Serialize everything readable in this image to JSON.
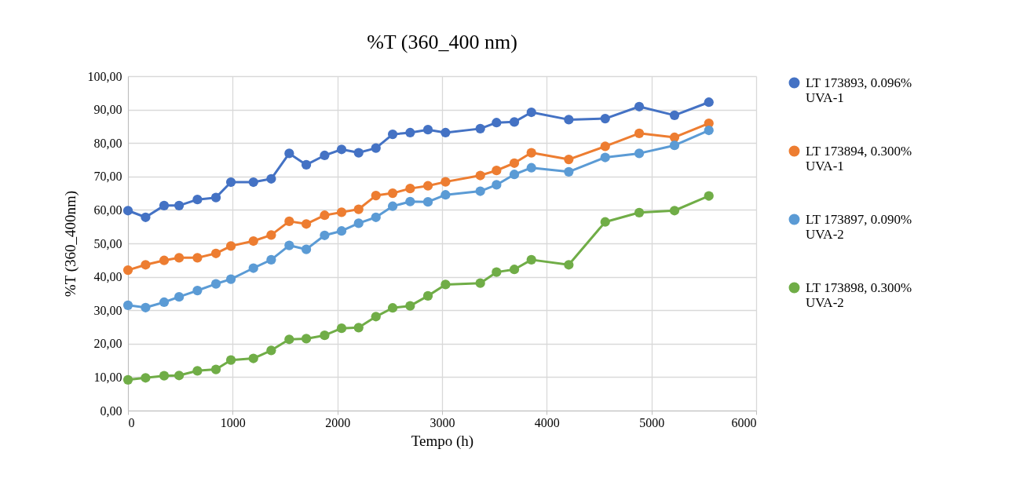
{
  "chart_data": {
    "type": "line",
    "title": "%T (360_400 nm)",
    "xlabel": "Tempo (h)",
    "ylabel": "%T (360_400nm)",
    "x": [
      0,
      168,
      345,
      488,
      663,
      840,
      983,
      1198,
      1368,
      1540,
      1703,
      1878,
      2040,
      2203,
      2368,
      2528,
      2695,
      2865,
      3033,
      3365,
      3520,
      3690,
      3853,
      4210,
      4558,
      4883,
      5220,
      5548
    ],
    "series": [
      {
        "name": "LT 173893, 0.096% UVA-1",
        "color": "#4472c4",
        "values": [
          59.8,
          57.8,
          61.3,
          61.3,
          63.1,
          63.7,
          68.3,
          68.3,
          69.3,
          76.9,
          73.5,
          76.3,
          78.1,
          77.1,
          78.5,
          82.6,
          83.1,
          84.0,
          83.1,
          84.3,
          86.1,
          86.3,
          89.2,
          87.0,
          87.3,
          90.9,
          88.3,
          92.2
        ]
      },
      {
        "name": "LT 173894, 0.300% UVA-1",
        "color": "#ed7d31",
        "values": [
          42.0,
          43.6,
          44.9,
          45.7,
          45.7,
          47.0,
          49.2,
          50.7,
          52.5,
          56.6,
          55.8,
          58.4,
          59.3,
          60.2,
          64.3,
          65.0,
          66.4,
          67.2,
          68.4,
          70.3,
          71.8,
          74.0,
          77.1,
          75.1,
          79.0,
          82.9,
          81.7,
          85.9
        ]
      },
      {
        "name": "LT 173897, 0.090% UVA-2",
        "color": "#5b9bd5",
        "values": [
          31.5,
          30.8,
          32.4,
          34.0,
          35.9,
          37.9,
          39.3,
          42.6,
          45.1,
          49.4,
          48.2,
          52.4,
          53.7,
          56.0,
          57.8,
          61.1,
          62.5,
          62.4,
          64.5,
          65.6,
          67.5,
          70.6,
          72.6,
          71.4,
          75.7,
          76.9,
          79.3,
          83.8
        ]
      },
      {
        "name": "LT 173898, 0.300% UVA-2",
        "color": "#70ad47",
        "values": [
          9.2,
          9.8,
          10.4,
          10.5,
          11.9,
          12.3,
          15.1,
          15.6,
          18.0,
          21.3,
          21.5,
          22.5,
          24.6,
          24.8,
          28.1,
          30.7,
          31.3,
          34.3,
          37.7,
          38.1,
          41.4,
          42.2,
          45.1,
          43.6,
          56.4,
          59.2,
          59.8,
          64.2
        ]
      }
    ],
    "xlim": [
      0,
      6000
    ],
    "xticks": [
      0,
      1000,
      2000,
      3000,
      4000,
      5000,
      6000
    ],
    "ylim": [
      0,
      100
    ],
    "yticks": [
      {
        "value": 0,
        "label": "0,00"
      },
      {
        "value": 10,
        "label": "10,00"
      },
      {
        "value": 20,
        "label": "20,00"
      },
      {
        "value": 30,
        "label": "30,00"
      },
      {
        "value": 40,
        "label": "40,00"
      },
      {
        "value": 50,
        "label": "50,00"
      },
      {
        "value": 60,
        "label": "60,00"
      },
      {
        "value": 70,
        "label": "70,00"
      },
      {
        "value": 80,
        "label": "80,00"
      },
      {
        "value": 90,
        "label": "90,00"
      },
      {
        "value": 100,
        "label": "100,00"
      }
    ],
    "grid": true,
    "legend": "right",
    "marker": "circle",
    "line_style": "solid"
  }
}
